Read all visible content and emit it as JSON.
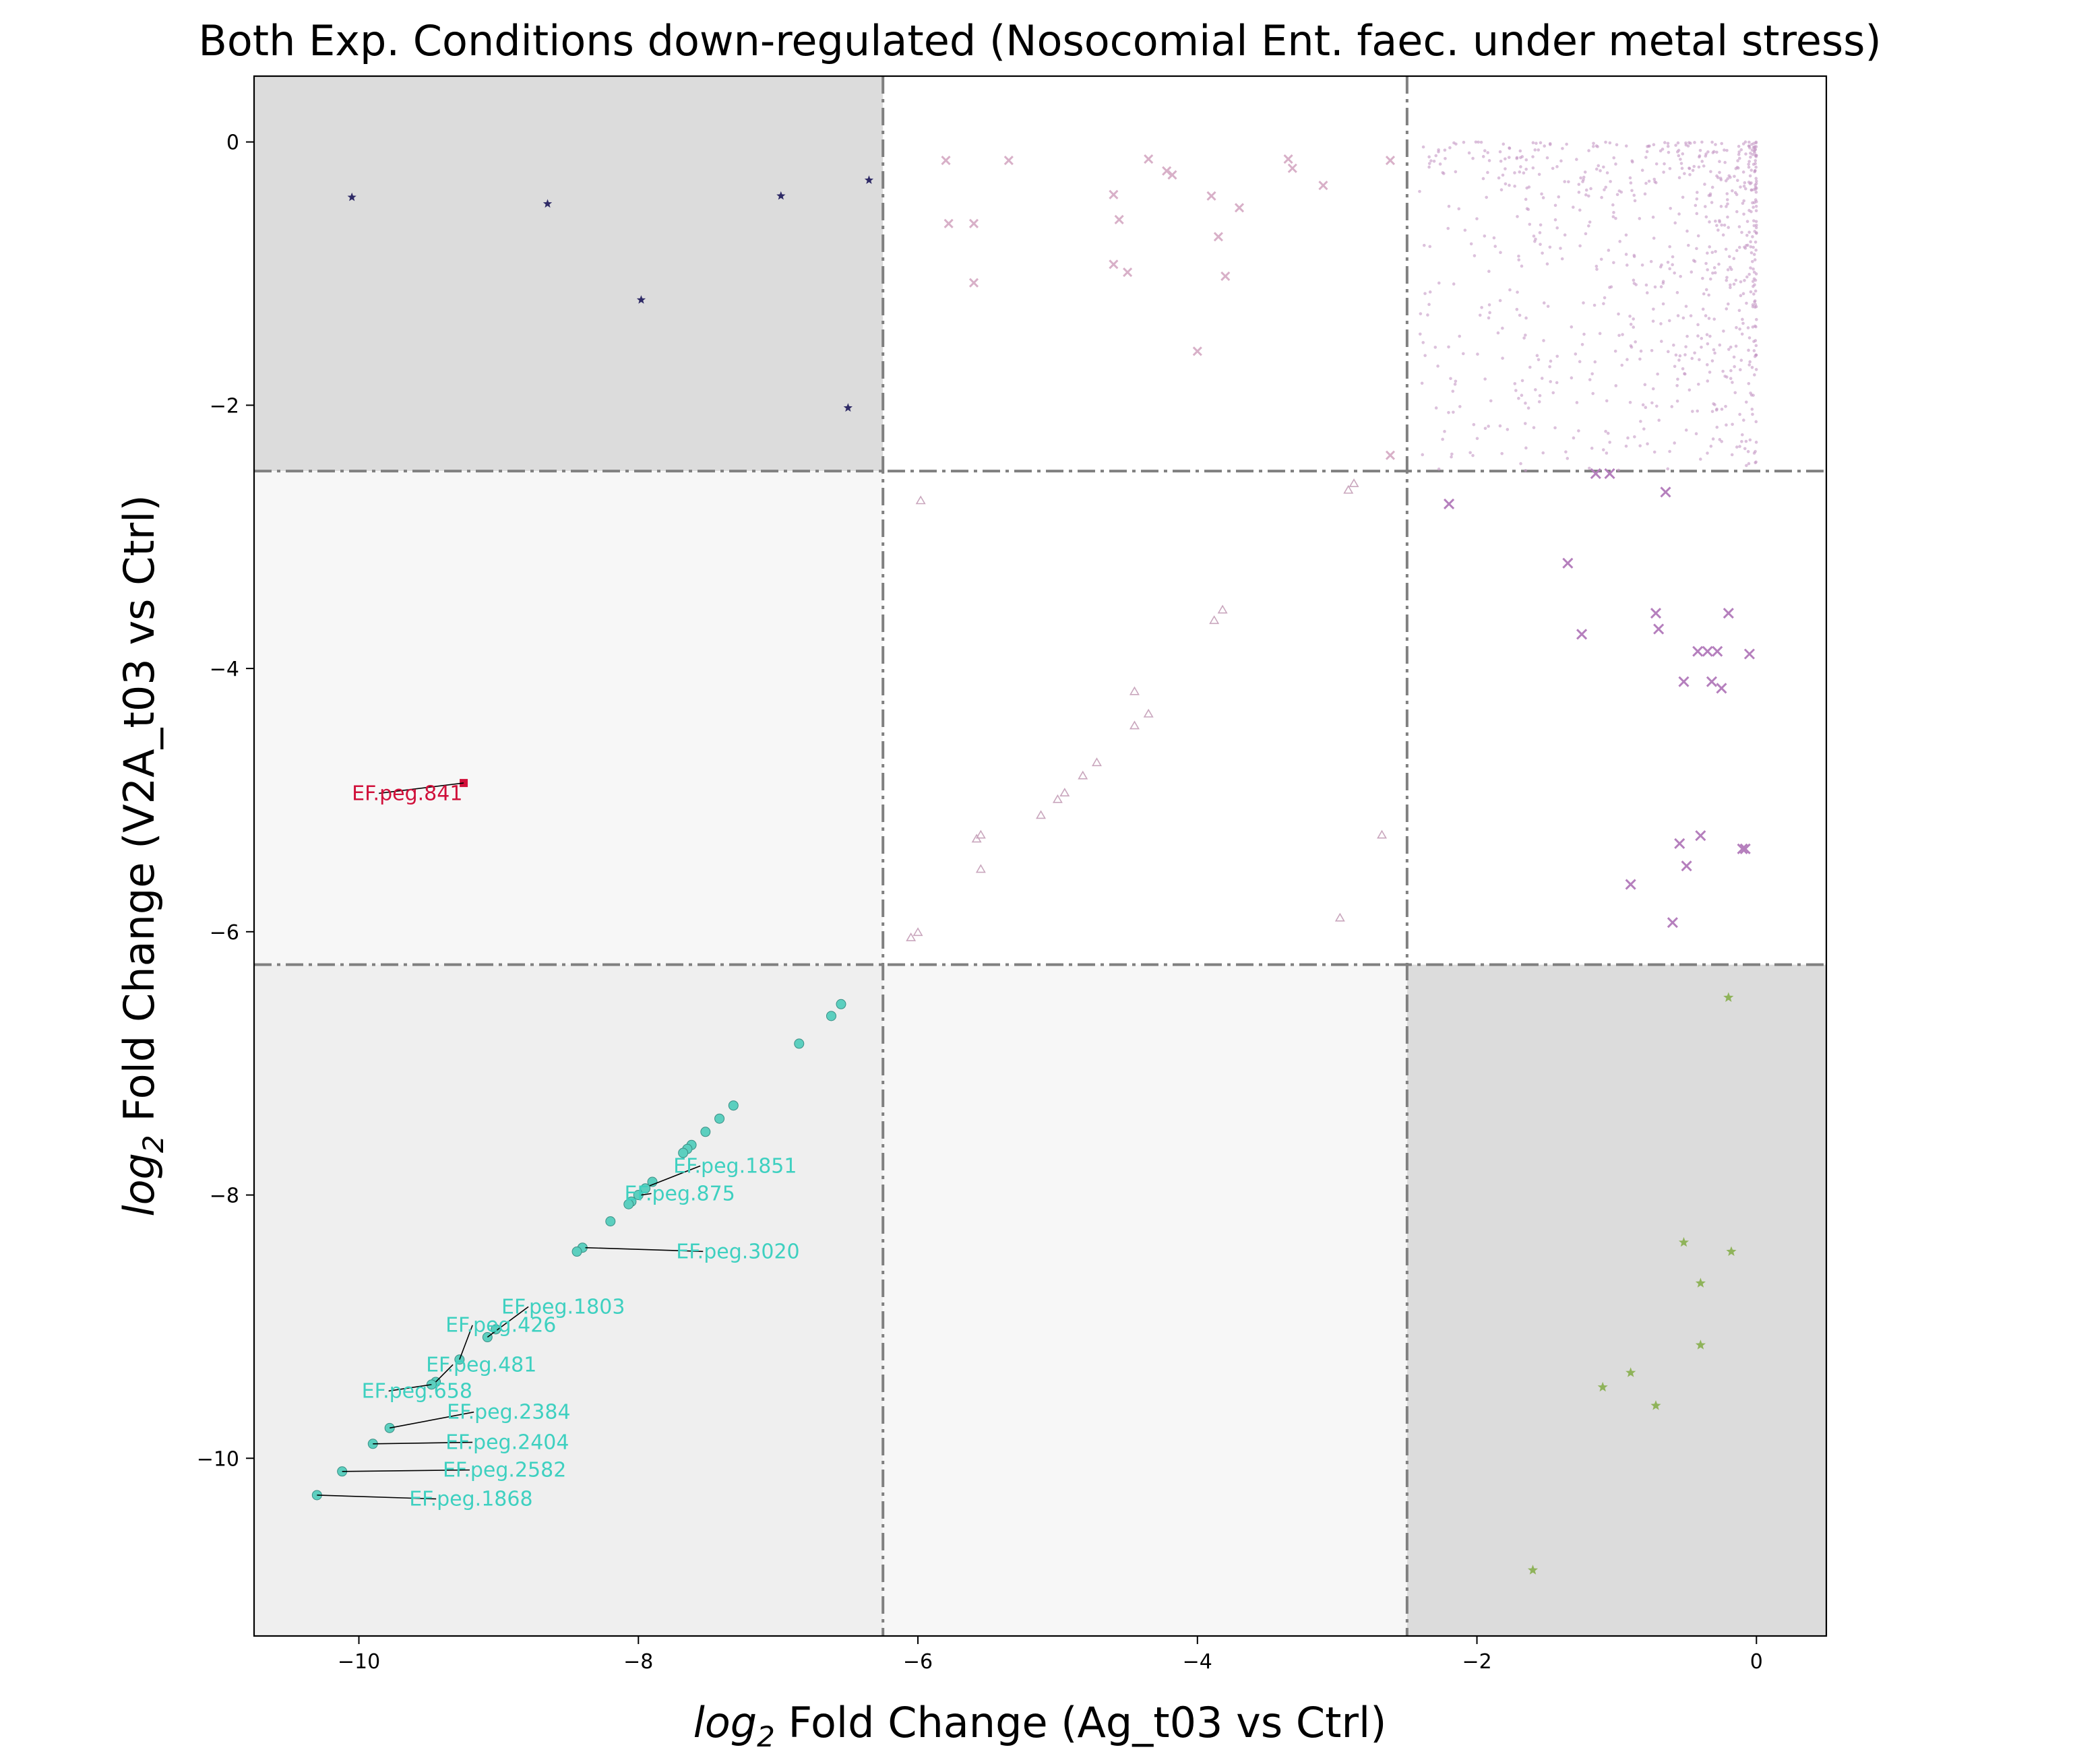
{
  "chart_data": {
    "type": "scatter",
    "title": "Both Exp. Conditions down-regulated (Nosocomial Ent. faec. under metal stress)",
    "xlabel_prefix": "log",
    "xlabel_sub": "2",
    "xlabel_suffix": " Fold Change (Ag_t03 vs Ctrl)",
    "ylabel_prefix": "log",
    "ylabel_sub": "2",
    "ylabel_suffix": " Fold Change (V2A_t03 vs Ctrl)",
    "xlim": [
      -10.75,
      0.5
    ],
    "ylim": [
      -11.35,
      0.5
    ],
    "xticks": [
      -10,
      -8,
      -6,
      -4,
      -2,
      0
    ],
    "yticks": [
      -10,
      -8,
      -6,
      -4,
      -2,
      0
    ],
    "xtick_labels": [
      "−10",
      "−8",
      "−6",
      "−4",
      "−2",
      "0"
    ],
    "ytick_labels": [
      "−10",
      "−8",
      "−6",
      "−4",
      "−2",
      "0"
    ],
    "thresholds": {
      "x": [
        -6.25,
        -2.5
      ],
      "y": [
        -2.5,
        -6.25
      ]
    },
    "regions": [
      {
        "x": [
          -10.75,
          -6.25
        ],
        "y": [
          -2.5,
          0.5
        ],
        "color": "#dcdcdc"
      },
      {
        "x": [
          -10.75,
          -6.25
        ],
        "y": [
          -6.25,
          -2.5
        ],
        "color": "#f7f7f7"
      },
      {
        "x": [
          -10.75,
          -6.25
        ],
        "y": [
          -11.35,
          -6.25
        ],
        "color": "#efefef"
      },
      {
        "x": [
          -6.25,
          -2.5
        ],
        "y": [
          -11.35,
          -6.25
        ],
        "color": "#f7f7f7"
      },
      {
        "x": [
          -2.5,
          0.5
        ],
        "y": [
          -11.35,
          -6.25
        ],
        "color": "#dcdcdc"
      }
    ],
    "series": [
      {
        "marker": "star",
        "color": "#2e2a66",
        "size": 7,
        "points": [
          [
            -10.05,
            -0.42
          ],
          [
            -8.65,
            -0.47
          ],
          [
            -7.98,
            -1.2
          ],
          [
            -6.98,
            -0.41
          ],
          [
            -6.35,
            -0.29
          ],
          [
            -6.5,
            -2.02
          ]
        ]
      },
      {
        "marker": "x",
        "color": "#d8b0c8",
        "size": 6,
        "points": [
          [
            -5.8,
            -0.14
          ],
          [
            -5.35,
            -0.14
          ],
          [
            -4.35,
            -0.13
          ],
          [
            -4.22,
            -0.22
          ],
          [
            -4.18,
            -0.25
          ],
          [
            -3.35,
            -0.13
          ],
          [
            -3.32,
            -0.2
          ],
          [
            -3.1,
            -0.33
          ],
          [
            -2.62,
            -0.14
          ],
          [
            -5.6,
            -0.62
          ],
          [
            -5.78,
            -0.62
          ],
          [
            -4.6,
            -0.4
          ],
          [
            -4.56,
            -0.59
          ],
          [
            -3.9,
            -0.41
          ],
          [
            -3.85,
            -0.72
          ],
          [
            -3.7,
            -0.5
          ],
          [
            -4.6,
            -0.93
          ],
          [
            -4.5,
            -0.99
          ],
          [
            -3.8,
            -1.02
          ],
          [
            -5.6,
            -1.07
          ],
          [
            -4.0,
            -1.59
          ],
          [
            -2.62,
            -2.38
          ]
        ]
      },
      {
        "marker": "dot",
        "color": "#c597c5",
        "size": 2.3,
        "cluster": {
          "count": 780,
          "x_range": [
            -2.42,
            0.0
          ],
          "y_range": [
            -2.5,
            0.0
          ],
          "dense_corner": [
            0.0,
            0.0
          ]
        }
      },
      {
        "marker": "triangle",
        "color": "#c9a6bd",
        "size": 7,
        "points": [
          [
            -5.98,
            -2.73
          ],
          [
            -2.92,
            -2.65
          ],
          [
            -2.88,
            -2.6
          ],
          [
            -3.88,
            -3.64
          ],
          [
            -3.82,
            -3.56
          ],
          [
            -4.45,
            -4.18
          ],
          [
            -4.45,
            -4.44
          ],
          [
            -4.35,
            -4.35
          ],
          [
            -4.72,
            -4.72
          ],
          [
            -4.82,
            -4.82
          ],
          [
            -4.95,
            -4.95
          ],
          [
            -5.0,
            -5.0
          ],
          [
            -5.12,
            -5.12
          ],
          [
            -5.55,
            -5.27
          ],
          [
            -5.58,
            -5.3
          ],
          [
            -5.55,
            -5.53
          ],
          [
            -2.68,
            -5.27
          ],
          [
            -2.98,
            -5.9
          ],
          [
            -6.05,
            -6.05
          ],
          [
            -6.0,
            -6.01
          ]
        ]
      },
      {
        "marker": "x",
        "color": "#b57fbd",
        "size": 7,
        "points": [
          [
            -2.2,
            -2.75
          ],
          [
            -1.15,
            -2.52
          ],
          [
            -1.05,
            -2.52
          ],
          [
            -0.65,
            -2.66
          ],
          [
            -1.35,
            -3.2
          ],
          [
            -1.25,
            -3.74
          ],
          [
            -0.72,
            -3.58
          ],
          [
            -0.7,
            -3.7
          ],
          [
            -0.2,
            -3.58
          ],
          [
            -0.42,
            -3.87
          ],
          [
            -0.35,
            -3.87
          ],
          [
            -0.28,
            -3.87
          ],
          [
            -0.05,
            -3.89
          ],
          [
            -0.52,
            -4.1
          ],
          [
            -0.32,
            -4.1
          ],
          [
            -0.25,
            -4.15
          ],
          [
            -0.4,
            -5.27
          ],
          [
            -0.55,
            -5.33
          ],
          [
            -0.1,
            -5.37
          ],
          [
            -0.08,
            -5.37
          ],
          [
            -0.5,
            -5.5
          ],
          [
            -0.9,
            -5.64
          ],
          [
            -0.6,
            -5.93
          ]
        ]
      },
      {
        "marker": "circle",
        "color": "#5ccfbf",
        "size": 12,
        "points": [
          [
            -6.55,
            -6.55
          ],
          [
            -6.62,
            -6.64
          ],
          [
            -6.85,
            -6.85
          ],
          [
            -7.32,
            -7.32
          ],
          [
            -7.42,
            -7.42
          ],
          [
            -7.52,
            -7.52
          ],
          [
            -7.62,
            -7.62
          ],
          [
            -7.65,
            -7.65
          ],
          [
            -7.68,
            -7.68
          ],
          [
            -7.9,
            -7.9
          ],
          [
            -7.95,
            -7.95
          ],
          [
            -8.0,
            -8.0
          ],
          [
            -8.05,
            -8.05
          ],
          [
            -8.07,
            -8.07
          ],
          [
            -8.2,
            -8.2
          ],
          [
            -8.4,
            -8.4
          ],
          [
            -8.44,
            -8.43
          ],
          [
            -9.02,
            -9.02
          ],
          [
            -9.08,
            -9.08
          ],
          [
            -9.28,
            -9.25
          ],
          [
            -9.45,
            -9.42
          ],
          [
            -9.48,
            -9.44
          ],
          [
            -9.78,
            -9.77
          ],
          [
            -9.9,
            -9.89
          ],
          [
            -10.12,
            -10.1
          ],
          [
            -10.3,
            -10.28
          ]
        ]
      },
      {
        "marker": "square",
        "color": "#d0103a",
        "size": 12,
        "points": [
          [
            -9.25,
            -4.87
          ]
        ]
      },
      {
        "marker": "star",
        "color": "#8fb35a",
        "size": 8,
        "points": [
          [
            -0.2,
            -6.5
          ],
          [
            -0.52,
            -8.36
          ],
          [
            -0.18,
            -8.43
          ],
          [
            -0.4,
            -8.67
          ],
          [
            -0.4,
            -9.14
          ],
          [
            -0.9,
            -9.35
          ],
          [
            -1.1,
            -9.46
          ],
          [
            -0.72,
            -9.6
          ],
          [
            -1.6,
            -10.85
          ]
        ]
      }
    ],
    "annotations": [
      {
        "label": "EF.peg.841",
        "color": "#d0103a",
        "text_pos": [
          -10.05,
          -5.0
        ],
        "point": [
          -9.25,
          -4.87
        ]
      },
      {
        "label": "EF.peg.1851",
        "color": "#3ed0c0",
        "text_pos": [
          -7.75,
          -7.83
        ],
        "point": [
          -7.92,
          -7.93
        ]
      },
      {
        "label": "EF.peg.875",
        "color": "#3ed0c0",
        "text_pos": [
          -8.1,
          -8.04
        ],
        "point": [
          -7.98,
          -8.0
        ]
      },
      {
        "label": "EF.peg.3020",
        "color": "#3ed0c0",
        "text_pos": [
          -7.73,
          -8.48
        ],
        "point": [
          -8.38,
          -8.4
        ]
      },
      {
        "label": "EF.peg.1803",
        "color": "#3ed0c0",
        "text_pos": [
          -8.98,
          -8.9
        ],
        "point": [
          -9.08,
          -9.08
        ]
      },
      {
        "label": "EF.peg.426",
        "color": "#3ed0c0",
        "text_pos": [
          -9.38,
          -9.04
        ],
        "point": [
          -9.28,
          -9.25
        ]
      },
      {
        "label": "EF.peg.481",
        "color": "#3ed0c0",
        "text_pos": [
          -9.52,
          -9.34
        ],
        "point": [
          -9.45,
          -9.42
        ]
      },
      {
        "label": "EF.peg.658",
        "color": "#3ed0c0",
        "text_pos": [
          -9.98,
          -9.54
        ],
        "point": [
          -9.48,
          -9.44
        ]
      },
      {
        "label": "EF.peg.2384",
        "color": "#3ed0c0",
        "text_pos": [
          -9.37,
          -9.7
        ],
        "point": [
          -9.78,
          -9.77
        ]
      },
      {
        "label": "EF.peg.2404",
        "color": "#3ed0c0",
        "text_pos": [
          -9.38,
          -9.93
        ],
        "point": [
          -9.9,
          -9.89
        ]
      },
      {
        "label": "EF.peg.2582",
        "color": "#3ed0c0",
        "text_pos": [
          -9.4,
          -10.14
        ],
        "point": [
          -10.12,
          -10.1
        ]
      },
      {
        "label": "EF.peg.1868",
        "color": "#3ed0c0",
        "text_pos": [
          -9.64,
          -10.36
        ],
        "point": [
          -10.3,
          -10.28
        ]
      }
    ]
  }
}
